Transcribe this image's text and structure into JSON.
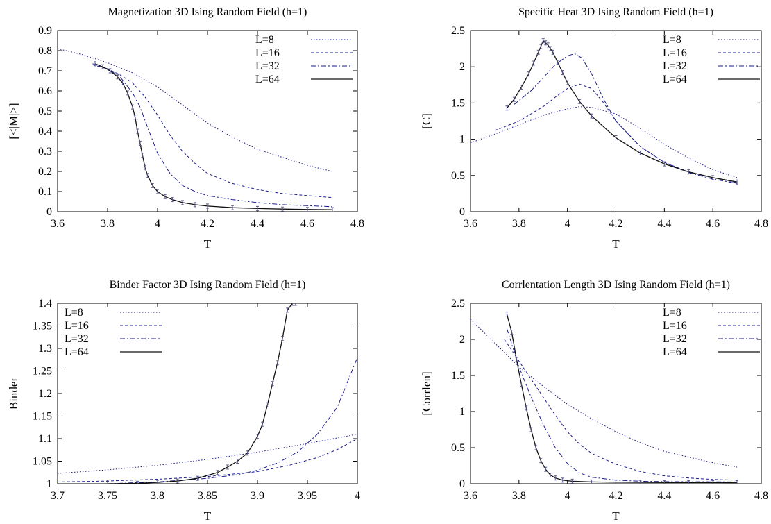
{
  "chart_data": [
    {
      "type": "line",
      "title": "Magnetization 3D Ising Random Field (h=1)",
      "xlabel": "T",
      "ylabel": "[<|M|>]",
      "xlim": [
        3.6,
        4.8
      ],
      "ylim": [
        0,
        0.9
      ],
      "xticks": [
        "3.6",
        "3.8",
        "4",
        "4.2",
        "4.4",
        "4.6",
        "4.8"
      ],
      "yticks": [
        "0",
        "0.1",
        "0.2",
        "0.3",
        "0.4",
        "0.5",
        "0.6",
        "0.7",
        "0.8",
        "0.9"
      ],
      "legend_position": "top-right",
      "series": [
        {
          "name": "L=8",
          "color": "#1a1a8c",
          "dash": "dotted",
          "x": [
            3.6,
            3.7,
            3.8,
            3.9,
            4.0,
            4.1,
            4.2,
            4.3,
            4.4,
            4.5,
            4.6,
            4.7
          ],
          "y": [
            0.81,
            0.78,
            0.74,
            0.69,
            0.62,
            0.53,
            0.44,
            0.37,
            0.31,
            0.27,
            0.23,
            0.2
          ]
        },
        {
          "name": "L=16",
          "color": "#1a1a8c",
          "dash": "dashed",
          "x": [
            3.74,
            3.8,
            3.85,
            3.9,
            3.95,
            4.0,
            4.05,
            4.1,
            4.15,
            4.2,
            4.3,
            4.4,
            4.5,
            4.6,
            4.7
          ],
          "y": [
            0.73,
            0.71,
            0.68,
            0.64,
            0.57,
            0.48,
            0.38,
            0.3,
            0.24,
            0.19,
            0.14,
            0.11,
            0.09,
            0.08,
            0.07
          ]
        },
        {
          "name": "L=32",
          "color": "#1a1a8c",
          "dash": "dashdot",
          "x": [
            3.74,
            3.8,
            3.85,
            3.9,
            3.93,
            3.96,
            4.0,
            4.05,
            4.1,
            4.15,
            4.2,
            4.3,
            4.4,
            4.5,
            4.6,
            4.7
          ],
          "y": [
            0.735,
            0.71,
            0.67,
            0.59,
            0.52,
            0.42,
            0.29,
            0.19,
            0.13,
            0.1,
            0.08,
            0.06,
            0.045,
            0.035,
            0.03,
            0.025
          ]
        },
        {
          "name": "L=64",
          "color": "#111111",
          "dash": "solid",
          "errorbars": true,
          "x": [
            3.75,
            3.78,
            3.81,
            3.84,
            3.86,
            3.88,
            3.9,
            3.91,
            3.92,
            3.93,
            3.94,
            3.95,
            3.96,
            3.98,
            4.0,
            4.03,
            4.06,
            4.1,
            4.15,
            4.2,
            4.3,
            4.4,
            4.5,
            4.6,
            4.7
          ],
          "y": [
            0.735,
            0.72,
            0.7,
            0.67,
            0.64,
            0.59,
            0.52,
            0.47,
            0.4,
            0.34,
            0.28,
            0.22,
            0.18,
            0.13,
            0.1,
            0.075,
            0.06,
            0.045,
            0.035,
            0.028,
            0.02,
            0.016,
            0.013,
            0.011,
            0.01
          ]
        }
      ]
    },
    {
      "type": "line",
      "title": "Specific Heat 3D Ising Random Field (h=1)",
      "xlabel": "T",
      "ylabel": "[C]",
      "xlim": [
        3.6,
        4.8
      ],
      "ylim": [
        0,
        2.5
      ],
      "xticks": [
        "3.6",
        "3.8",
        "4",
        "4.2",
        "4.4",
        "4.6",
        "4.8"
      ],
      "yticks": [
        "0",
        "0.5",
        "1",
        "1.5",
        "2",
        "2.5"
      ],
      "legend_position": "top-right",
      "series": [
        {
          "name": "L=8",
          "color": "#1a1a8c",
          "dash": "dotted",
          "x": [
            3.6,
            3.7,
            3.8,
            3.9,
            4.0,
            4.05,
            4.1,
            4.2,
            4.3,
            4.4,
            4.5,
            4.6,
            4.7
          ],
          "y": [
            0.95,
            1.07,
            1.2,
            1.33,
            1.42,
            1.45,
            1.44,
            1.35,
            1.15,
            0.93,
            0.74,
            0.58,
            0.47
          ]
        },
        {
          "name": "L=16",
          "color": "#1a1a8c",
          "dash": "dashed",
          "x": [
            3.7,
            3.8,
            3.9,
            3.95,
            4.0,
            4.05,
            4.1,
            4.15,
            4.2,
            4.3,
            4.4,
            4.5,
            4.6,
            4.7
          ],
          "y": [
            1.12,
            1.25,
            1.45,
            1.58,
            1.7,
            1.76,
            1.7,
            1.5,
            1.25,
            0.9,
            0.68,
            0.55,
            0.47,
            0.4
          ]
        },
        {
          "name": "L=32",
          "color": "#1a1a8c",
          "dash": "dashdot",
          "x": [
            3.78,
            3.85,
            3.9,
            3.95,
            4.0,
            4.03,
            4.06,
            4.1,
            4.15,
            4.2,
            4.3,
            4.4,
            4.5,
            4.6,
            4.7
          ],
          "y": [
            1.48,
            1.67,
            1.85,
            2.03,
            2.15,
            2.18,
            2.12,
            1.9,
            1.55,
            1.25,
            0.9,
            0.68,
            0.54,
            0.45,
            0.39
          ]
        },
        {
          "name": "L=64",
          "color": "#111111",
          "dash": "solid",
          "errorbars": true,
          "x": [
            3.75,
            3.78,
            3.81,
            3.84,
            3.86,
            3.88,
            3.89,
            3.9,
            3.91,
            3.92,
            3.93,
            3.94,
            3.96,
            3.98,
            4.0,
            4.05,
            4.1,
            4.2,
            4.3,
            4.4,
            4.5,
            4.6,
            4.7
          ],
          "y": [
            1.43,
            1.55,
            1.72,
            1.9,
            2.05,
            2.2,
            2.28,
            2.36,
            2.33,
            2.3,
            2.25,
            2.2,
            2.06,
            1.92,
            1.78,
            1.52,
            1.32,
            1.02,
            0.81,
            0.66,
            0.55,
            0.47,
            0.41
          ]
        }
      ]
    },
    {
      "type": "line",
      "title": "Binder Factor 3D Ising Random Field (h=1)",
      "xlabel": "T",
      "ylabel": "Binder",
      "xlim": [
        3.7,
        4.0
      ],
      "ylim": [
        1,
        1.4
      ],
      "xticks": [
        "3.7",
        "3.75",
        "3.8",
        "3.85",
        "3.9",
        "3.95",
        "4"
      ],
      "yticks": [
        "1",
        "1.05",
        "1.1",
        "1.15",
        "1.2",
        "1.25",
        "1.3",
        "1.35",
        "1.4"
      ],
      "legend_position": "top-left",
      "series": [
        {
          "name": "L=8",
          "color": "#1a1a8c",
          "dash": "dotted",
          "x": [
            3.7,
            3.75,
            3.8,
            3.85,
            3.9,
            3.95,
            4.0
          ],
          "y": [
            1.023,
            1.031,
            1.041,
            1.054,
            1.07,
            1.089,
            1.11
          ]
        },
        {
          "name": "L=16",
          "color": "#1a1a8c",
          "dash": "dashed",
          "x": [
            3.7,
            3.75,
            3.8,
            3.85,
            3.9,
            3.93,
            3.96,
            3.98,
            4.0
          ],
          "y": [
            1.004,
            1.006,
            1.01,
            1.016,
            1.027,
            1.04,
            1.058,
            1.076,
            1.1
          ]
        },
        {
          "name": "L=32",
          "color": "#1a1a8c",
          "dash": "dashdot",
          "x": [
            3.75,
            3.8,
            3.85,
            3.88,
            3.9,
            3.92,
            3.94,
            3.96,
            3.98,
            4.0
          ],
          "y": [
            1.0,
            1.004,
            1.012,
            1.02,
            1.03,
            1.046,
            1.07,
            1.11,
            1.17,
            1.28
          ]
        },
        {
          "name": "L=64",
          "color": "#111111",
          "dash": "solid",
          "errorbars": true,
          "x": [
            3.75,
            3.78,
            3.8,
            3.82,
            3.84,
            3.86,
            3.87,
            3.88,
            3.89,
            3.9,
            3.905,
            3.91,
            3.915,
            3.92,
            3.925,
            3.93,
            3.935,
            3.938
          ],
          "y": [
            1.0,
            1.001,
            1.003,
            1.006,
            1.012,
            1.025,
            1.037,
            1.05,
            1.068,
            1.105,
            1.132,
            1.175,
            1.222,
            1.268,
            1.322,
            1.385,
            1.4,
            1.4
          ]
        }
      ]
    },
    {
      "type": "line",
      "title": "Corrlentation Length 3D Ising Random Field (h=1)",
      "xlabel": "T",
      "ylabel": "[Corrlen]",
      "xlim": [
        3.6,
        4.8
      ],
      "ylim": [
        0,
        2.5
      ],
      "xticks": [
        "3.6",
        "3.8",
        "4",
        "4.2",
        "4.4",
        "4.6",
        "4.8"
      ],
      "yticks": [
        "0",
        "0.5",
        "1",
        "1.5",
        "2",
        "2.5"
      ],
      "legend_position": "top-right",
      "series": [
        {
          "name": "L=8",
          "color": "#1a1a8c",
          "dash": "dotted",
          "x": [
            3.6,
            3.7,
            3.8,
            3.9,
            4.0,
            4.1,
            4.2,
            4.3,
            4.4,
            4.5,
            4.6,
            4.7
          ],
          "y": [
            2.28,
            1.95,
            1.62,
            1.35,
            1.1,
            0.9,
            0.72,
            0.57,
            0.45,
            0.37,
            0.29,
            0.23
          ]
        },
        {
          "name": "L=16",
          "color": "#1a1a8c",
          "dash": "dashed",
          "x": [
            3.74,
            3.8,
            3.85,
            3.9,
            3.95,
            4.0,
            4.05,
            4.1,
            4.2,
            4.3,
            4.4,
            4.5,
            4.6,
            4.7
          ],
          "y": [
            2.0,
            1.7,
            1.45,
            1.2,
            0.95,
            0.72,
            0.55,
            0.42,
            0.27,
            0.17,
            0.11,
            0.08,
            0.06,
            0.05
          ]
        },
        {
          "name": "L=32",
          "color": "#1a1a8c",
          "dash": "dashdot",
          "x": [
            3.75,
            3.8,
            3.85,
            3.9,
            3.95,
            4.0,
            4.05,
            4.1,
            4.2,
            4.3,
            4.4,
            4.5,
            4.6,
            4.7
          ],
          "y": [
            2.15,
            1.62,
            1.2,
            0.82,
            0.5,
            0.28,
            0.15,
            0.09,
            0.05,
            0.035,
            0.03,
            0.028,
            0.027,
            0.025
          ]
        },
        {
          "name": "L=64",
          "color": "#111111",
          "dash": "solid",
          "errorbars": true,
          "x": [
            3.75,
            3.77,
            3.79,
            3.81,
            3.83,
            3.85,
            3.87,
            3.89,
            3.91,
            3.93,
            3.95,
            3.98,
            4.02,
            4.1,
            4.2,
            4.3,
            4.4,
            4.5,
            4.6,
            4.7
          ],
          "y": [
            2.35,
            2.1,
            1.72,
            1.38,
            1.05,
            0.75,
            0.5,
            0.32,
            0.2,
            0.12,
            0.08,
            0.05,
            0.035,
            0.025,
            0.02,
            0.018,
            0.016,
            0.015,
            0.015,
            0.014
          ]
        }
      ]
    }
  ]
}
